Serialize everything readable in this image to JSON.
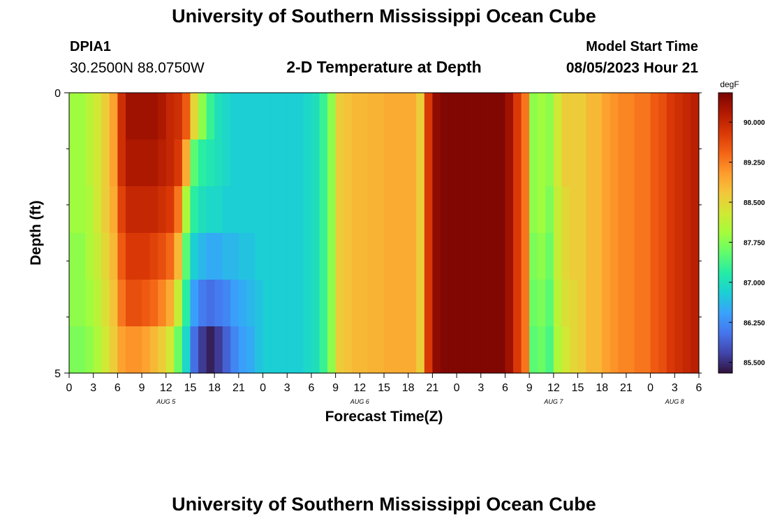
{
  "header": {
    "title": "University of Southern Mississippi Ocean Cube",
    "station": "DPIA1",
    "coords": "30.2500N  88.0750W",
    "plot_title": "2-D Temperature at Depth",
    "model_start_label": "Model Start Time",
    "model_start_value": "08/05/2023 Hour 21"
  },
  "footer": {
    "title": "University of Southern Mississippi Ocean Cube"
  },
  "chart_data": {
    "type": "heatmap",
    "title": "2-D Temperature at Depth",
    "xlabel": "Forecast Time(Z)",
    "ylabel": "Depth (ft)",
    "x_tick_labels": [
      "0",
      "3",
      "6",
      "9",
      "12",
      "15",
      "18",
      "21",
      "0",
      "3",
      "6",
      "9",
      "12",
      "15",
      "18",
      "21",
      "0",
      "3",
      "6",
      "9",
      "12",
      "15",
      "18",
      "21",
      "0",
      "3",
      "6"
    ],
    "x_tick_hours": [
      0,
      3,
      6,
      9,
      12,
      15,
      18,
      21,
      24,
      27,
      30,
      33,
      36,
      39,
      42,
      45,
      48,
      51,
      54,
      57,
      60,
      63,
      66,
      69,
      72,
      75,
      78
    ],
    "date_labels": [
      {
        "label": "AUG 5",
        "hour": 12
      },
      {
        "label": "AUG 6",
        "hour": 36
      },
      {
        "label": "AUG 7",
        "hour": 60
      },
      {
        "label": "AUG 8",
        "hour": 75
      }
    ],
    "y_tick_labels": [
      "0",
      "5"
    ],
    "ylim": [
      0,
      5
    ],
    "xlim_hours": [
      0,
      78
    ],
    "colorbar": {
      "unit": "degF",
      "ticks": [
        "90.000",
        "89.250",
        "88.500",
        "87.750",
        "87.000",
        "86.250",
        "85.500"
      ],
      "tick_values": [
        90.0,
        89.25,
        88.5,
        87.75,
        87.0,
        86.25,
        85.5
      ],
      "range": [
        85.3,
        90.55
      ],
      "colors": [
        "#30123b",
        "#4145ab",
        "#4675ed",
        "#39a2fc",
        "#1bcfd4",
        "#24eca6",
        "#61fc6c",
        "#a4fc3b",
        "#d1e834",
        "#f3c63a",
        "#fe9b2d",
        "#f36315",
        "#d93806",
        "#b11901",
        "#7a0402"
      ]
    },
    "depths_ft": [
      0,
      1,
      2,
      3,
      4,
      5
    ],
    "hours": [
      0,
      1,
      2,
      3,
      4,
      5,
      6,
      7,
      8,
      9,
      10,
      11,
      12,
      13,
      14,
      15,
      16,
      17,
      18,
      19,
      20,
      21,
      22,
      23,
      24,
      25,
      26,
      27,
      28,
      29,
      30,
      31,
      32,
      33,
      34,
      35,
      36,
      37,
      38,
      39,
      40,
      41,
      42,
      43,
      44,
      45,
      46,
      47,
      48,
      49,
      50,
      51,
      52,
      53,
      54,
      55,
      56,
      57,
      58,
      59,
      60,
      61,
      62,
      63,
      64,
      65,
      66,
      67,
      68,
      69,
      70,
      71,
      72,
      73,
      74,
      75,
      76,
      77
    ],
    "temperature_degF": [
      [
        87.9,
        87.9,
        88.1,
        88.3,
        88.6,
        89.0,
        89.9,
        90.3,
        90.3,
        90.3,
        90.3,
        90.2,
        90.0,
        89.9,
        89.5,
        88.5,
        87.8,
        87.3,
        87.0,
        86.9,
        86.8,
        86.8,
        86.8,
        86.8,
        86.8,
        86.8,
        86.8,
        86.8,
        86.8,
        86.9,
        87.0,
        87.3,
        87.8,
        88.6,
        88.7,
        88.8,
        88.8,
        88.85,
        88.85,
        88.9,
        88.9,
        88.9,
        88.9,
        88.6,
        89.8,
        90.4,
        90.5,
        90.5,
        90.5,
        90.5,
        90.5,
        90.5,
        90.5,
        90.5,
        90.3,
        89.8,
        89.3,
        87.8,
        87.9,
        87.8,
        88.3,
        88.6,
        88.6,
        88.6,
        88.8,
        88.8,
        89.0,
        89.1,
        89.2,
        89.2,
        89.3,
        89.3,
        89.5,
        89.6,
        89.8,
        89.9,
        90.0,
        90.1
      ],
      [
        87.9,
        87.9,
        88.1,
        88.3,
        88.6,
        89.0,
        89.9,
        90.2,
        90.2,
        90.2,
        90.2,
        90.1,
        90.0,
        89.8,
        88.9,
        87.5,
        87.2,
        87.1,
        87.0,
        86.9,
        86.8,
        86.8,
        86.8,
        86.8,
        86.8,
        86.8,
        86.8,
        86.8,
        86.8,
        86.9,
        87.0,
        87.3,
        87.8,
        88.6,
        88.7,
        88.8,
        88.8,
        88.85,
        88.85,
        88.9,
        88.9,
        88.9,
        88.9,
        88.6,
        89.8,
        90.4,
        90.5,
        90.5,
        90.5,
        90.5,
        90.5,
        90.5,
        90.5,
        90.5,
        90.3,
        89.8,
        89.3,
        87.8,
        87.9,
        87.8,
        88.3,
        88.6,
        88.6,
        88.6,
        88.8,
        88.8,
        89.0,
        89.1,
        89.2,
        89.2,
        89.3,
        89.3,
        89.5,
        89.6,
        89.8,
        89.9,
        90.0,
        90.1
      ],
      [
        87.9,
        87.9,
        88.0,
        88.3,
        88.6,
        88.9,
        89.7,
        90.0,
        90.0,
        90.0,
        90.0,
        89.9,
        89.8,
        89.3,
        88.0,
        87.2,
        87.0,
        86.9,
        86.9,
        86.8,
        86.8,
        86.8,
        86.8,
        86.8,
        86.8,
        86.8,
        86.8,
        86.8,
        86.8,
        86.9,
        87.0,
        87.3,
        87.8,
        88.6,
        88.7,
        88.8,
        88.8,
        88.85,
        88.85,
        88.9,
        88.9,
        88.9,
        88.9,
        88.6,
        89.8,
        90.4,
        90.5,
        90.5,
        90.5,
        90.5,
        90.5,
        90.5,
        90.5,
        90.5,
        90.3,
        89.8,
        89.3,
        87.8,
        87.9,
        87.7,
        88.2,
        88.5,
        88.6,
        88.6,
        88.8,
        88.8,
        89.0,
        89.1,
        89.2,
        89.2,
        89.3,
        89.3,
        89.5,
        89.6,
        89.8,
        89.9,
        90.0,
        90.1
      ],
      [
        87.8,
        87.8,
        88.0,
        88.2,
        88.5,
        88.8,
        89.5,
        89.8,
        89.8,
        89.8,
        89.7,
        89.6,
        89.4,
        88.8,
        87.5,
        86.8,
        86.6,
        86.5,
        86.5,
        86.6,
        86.6,
        86.7,
        86.7,
        86.8,
        86.8,
        86.8,
        86.8,
        86.8,
        86.8,
        86.9,
        87.0,
        87.3,
        87.8,
        88.6,
        88.7,
        88.8,
        88.8,
        88.85,
        88.85,
        88.9,
        88.9,
        88.9,
        88.9,
        88.6,
        89.8,
        90.4,
        90.5,
        90.5,
        90.5,
        90.5,
        90.5,
        90.5,
        90.5,
        90.5,
        90.3,
        89.8,
        89.3,
        87.7,
        87.8,
        87.6,
        88.2,
        88.5,
        88.6,
        88.6,
        88.8,
        88.8,
        89.0,
        89.1,
        89.2,
        89.2,
        89.3,
        89.3,
        89.5,
        89.6,
        89.8,
        89.9,
        90.0,
        90.1
      ],
      [
        87.8,
        87.8,
        87.9,
        88.1,
        88.4,
        88.7,
        89.3,
        89.6,
        89.6,
        89.5,
        89.4,
        89.2,
        88.9,
        88.2,
        87.2,
        86.4,
        86.1,
        86.0,
        86.1,
        86.2,
        86.4,
        86.5,
        86.6,
        86.7,
        86.8,
        86.8,
        86.8,
        86.8,
        86.8,
        86.9,
        87.0,
        87.3,
        87.8,
        88.6,
        88.7,
        88.8,
        88.8,
        88.85,
        88.85,
        88.9,
        88.9,
        88.9,
        88.9,
        88.6,
        89.8,
        90.4,
        90.5,
        90.5,
        90.5,
        90.5,
        90.5,
        90.5,
        90.5,
        90.5,
        90.3,
        89.8,
        89.3,
        87.6,
        87.7,
        87.5,
        88.1,
        88.4,
        88.5,
        88.6,
        88.8,
        88.8,
        89.0,
        89.1,
        89.2,
        89.2,
        89.3,
        89.3,
        89.5,
        89.6,
        89.8,
        89.9,
        90.0,
        90.1
      ],
      [
        87.7,
        87.7,
        87.8,
        88.0,
        88.3,
        88.6,
        89.0,
        89.1,
        89.1,
        89.0,
        88.8,
        88.6,
        88.3,
        87.6,
        86.9,
        86.0,
        85.6,
        85.4,
        85.6,
        85.9,
        86.2,
        86.4,
        86.5,
        86.7,
        86.8,
        86.8,
        86.8,
        86.8,
        86.8,
        86.9,
        87.0,
        87.3,
        87.8,
        88.6,
        88.7,
        88.8,
        88.8,
        88.85,
        88.85,
        88.9,
        88.9,
        88.9,
        88.9,
        88.6,
        89.8,
        90.4,
        90.5,
        90.5,
        90.5,
        90.5,
        90.5,
        90.5,
        90.5,
        90.5,
        90.3,
        89.8,
        89.3,
        87.5,
        87.6,
        87.4,
        88.0,
        88.3,
        88.5,
        88.6,
        88.8,
        88.8,
        89.0,
        89.1,
        89.2,
        89.2,
        89.3,
        89.3,
        89.5,
        89.6,
        89.8,
        89.9,
        90.0,
        90.1
      ]
    ]
  }
}
